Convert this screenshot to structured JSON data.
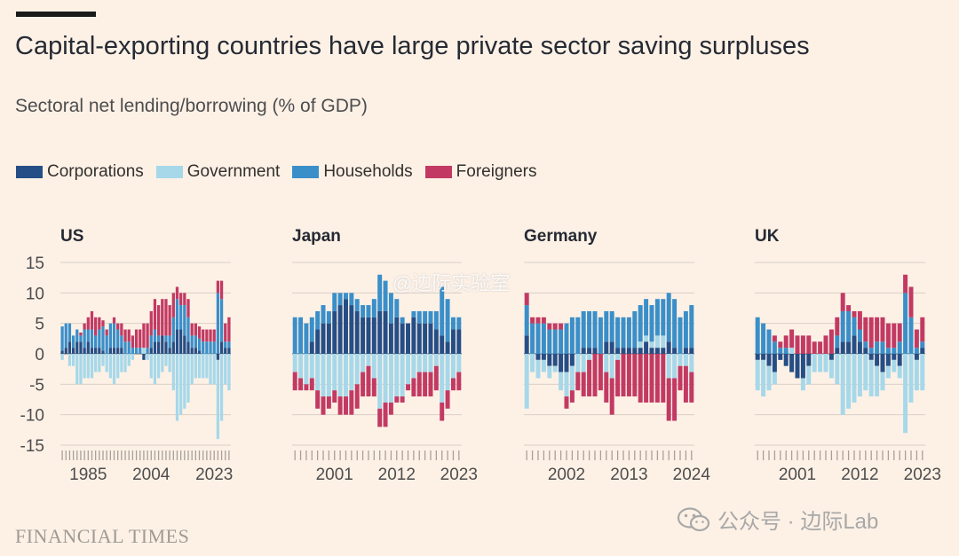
{
  "header": {
    "title": "Capital-exporting countries have large private sector saving surpluses",
    "subtitle": "Sectoral net lending/borrowing (% of GDP)"
  },
  "legend": [
    {
      "label": "Corporations",
      "color": "#264e86"
    },
    {
      "label": "Government",
      "color": "#a6d8ea"
    },
    {
      "label": "Households",
      "color": "#3a8fc9"
    },
    {
      "label": "Foreigners",
      "color": "#c23a63"
    }
  ],
  "footer": {
    "source": "FINANCIAL TIMES",
    "watermark_top": "@边际实验室",
    "watermark_bottom": "公众号 · 边际Lab"
  },
  "chart_data": [
    {
      "type": "bar",
      "stacked": "diverging",
      "title": "US",
      "ylim": [
        -15,
        15
      ],
      "yticks": [
        15,
        10,
        5,
        0,
        -5,
        -10,
        -15
      ],
      "xtick_labels": [
        "1985",
        "2004",
        "2023"
      ],
      "xticks_at": [
        7,
        24,
        41
      ],
      "categories": [
        "1978",
        "1979",
        "1980",
        "1981",
        "1982",
        "1983",
        "1984",
        "1985",
        "1986",
        "1987",
        "1988",
        "1989",
        "1990",
        "1991",
        "1992",
        "1993",
        "1994",
        "1995",
        "1996",
        "1997",
        "1998",
        "1999",
        "2000",
        "2001",
        "2002",
        "2003",
        "2004",
        "2005",
        "2006",
        "2007",
        "2008",
        "2009",
        "2010",
        "2011",
        "2012",
        "2013",
        "2014",
        "2015",
        "2016",
        "2017",
        "2018",
        "2019",
        "2020",
        "2021",
        "2022",
        "2023"
      ],
      "series": [
        {
          "name": "Corporations",
          "values": [
            0.5,
            1,
            2,
            1,
            2,
            2,
            1,
            2,
            1,
            1,
            1,
            0.5,
            0,
            1,
            1,
            1,
            1,
            0,
            0,
            0,
            0,
            0,
            -1,
            0,
            1,
            2,
            2,
            3,
            2,
            1,
            2,
            4,
            4,
            3,
            2,
            1,
            1,
            0.5,
            0,
            0,
            0,
            0,
            -1,
            2,
            1,
            1
          ]
        },
        {
          "name": "Government",
          "values": [
            -1,
            0,
            -2,
            -2,
            -5,
            -5,
            -4,
            -4,
            -4,
            -3,
            -3,
            -2,
            -3,
            -4,
            -5,
            -4,
            -3,
            -3,
            -2,
            -1,
            0,
            0,
            1,
            -1,
            -4,
            -5,
            -4,
            -3,
            -2,
            -3,
            -6,
            -11,
            -10,
            -9,
            -8,
            -5,
            -4,
            -4,
            -4,
            -4,
            -5,
            -5,
            -13,
            -11,
            -5,
            -6
          ]
        },
        {
          "name": "Households",
          "values": [
            4,
            4,
            3,
            2,
            2,
            1,
            3,
            2,
            3,
            2,
            3,
            4,
            3,
            4,
            4,
            3,
            2,
            2,
            2,
            1,
            1,
            1,
            0,
            1,
            2,
            2,
            1,
            0,
            1,
            2,
            4,
            5,
            4,
            5,
            4,
            2,
            2,
            2,
            2,
            2,
            2,
            2,
            10,
            7,
            1,
            1
          ]
        },
        {
          "name": "Foreigners",
          "values": [
            0,
            0,
            0,
            0,
            0,
            0.5,
            1,
            2,
            3,
            3,
            2,
            1,
            1,
            0,
            1,
            1,
            2,
            2,
            2,
            2,
            3,
            3,
            4,
            4,
            4,
            5,
            5,
            6,
            6,
            5,
            4,
            2,
            2,
            2,
            3,
            2,
            2,
            2,
            2,
            2,
            2,
            2,
            2,
            3,
            3,
            4
          ]
        }
      ]
    },
    {
      "type": "bar",
      "stacked": "diverging",
      "title": "Japan",
      "ylim": [
        -15,
        15
      ],
      "yticks": [
        15,
        10,
        5,
        0,
        -5,
        -10,
        -15
      ],
      "xtick_labels": [
        "2001",
        "2012",
        "2023"
      ],
      "xticks_at": [
        7,
        18,
        29
      ],
      "categories": [
        "1994",
        "1995",
        "1996",
        "1997",
        "1998",
        "1999",
        "2000",
        "2001",
        "2002",
        "2003",
        "2004",
        "2005",
        "2006",
        "2007",
        "2008",
        "2009",
        "2010",
        "2011",
        "2012",
        "2013",
        "2014",
        "2015",
        "2016",
        "2017",
        "2018",
        "2019",
        "2020",
        "2021",
        "2022",
        "2023"
      ],
      "series": [
        {
          "name": "Corporations",
          "values": [
            0,
            0,
            0,
            2,
            4,
            5,
            5,
            7,
            8,
            9,
            8,
            7,
            6,
            6,
            6,
            7,
            7,
            5,
            6,
            5,
            5,
            6,
            5,
            5,
            5,
            4,
            3,
            2,
            4,
            4
          ]
        },
        {
          "name": "Government",
          "values": [
            -3,
            -4,
            -5,
            -4,
            -6,
            -7,
            -7,
            -6,
            -7,
            -7,
            -6,
            -5,
            -3,
            -2,
            -4,
            -9,
            -8,
            -8,
            -7,
            -7,
            -5,
            -4,
            -3,
            -3,
            -3,
            -2,
            -8,
            -6,
            -4,
            -3
          ]
        },
        {
          "name": "Households",
          "values": [
            6,
            6,
            5,
            4,
            3,
            3,
            2,
            3,
            2,
            1,
            2,
            2,
            2,
            2,
            3,
            6,
            5,
            5,
            3,
            1,
            0,
            1,
            2,
            2,
            2,
            3,
            8,
            7,
            2,
            2
          ]
        },
        {
          "name": "Foreigners",
          "values": [
            -3,
            -2,
            -1,
            -2,
            -3,
            -3,
            -2,
            -2,
            -3,
            -3,
            -4,
            -4,
            -4,
            -5,
            -3,
            -3,
            -4,
            -2,
            -1,
            -1,
            -1,
            -3,
            -4,
            -4,
            -4,
            -4,
            -3,
            -3,
            -2,
            -3
          ]
        }
      ]
    },
    {
      "type": "bar",
      "stacked": "diverging",
      "title": "Germany",
      "ylim": [
        -15,
        15
      ],
      "yticks": [
        15,
        10,
        5,
        0,
        -5,
        -10,
        -15
      ],
      "xtick_labels": [
        "2002",
        "2013",
        "2024"
      ],
      "xticks_at": [
        7,
        18,
        29
      ],
      "categories": [
        "1995",
        "1996",
        "1997",
        "1998",
        "1999",
        "2000",
        "2001",
        "2002",
        "2003",
        "2004",
        "2005",
        "2006",
        "2007",
        "2008",
        "2009",
        "2010",
        "2011",
        "2012",
        "2013",
        "2014",
        "2015",
        "2016",
        "2017",
        "2018",
        "2019",
        "2020",
        "2021",
        "2022",
        "2023",
        "2024"
      ],
      "series": [
        {
          "name": "Corporations",
          "values": [
            3,
            0,
            -1,
            -1,
            -2,
            -2,
            -3,
            -3,
            -2,
            0,
            1,
            1,
            1,
            0,
            2,
            2,
            1,
            1,
            1,
            1,
            1,
            2,
            1,
            1,
            1,
            2,
            1,
            0,
            1,
            1
          ]
        },
        {
          "name": "Government",
          "values": [
            -9,
            -3,
            -3,
            -2,
            -2,
            -1,
            -3,
            -4,
            -4,
            -3,
            -3,
            -1,
            0,
            0,
            -3,
            -4,
            -1,
            0,
            0,
            0,
            1,
            1,
            1,
            2,
            2,
            -4,
            -4,
            -2,
            -2,
            -3
          ]
        },
        {
          "name": "Households",
          "values": [
            5,
            5,
            5,
            5,
            4,
            4,
            4,
            5,
            6,
            6,
            6,
            6,
            6,
            6,
            5,
            5,
            5,
            5,
            5,
            6,
            6,
            6,
            6,
            6,
            6,
            8,
            8,
            6,
            6,
            7
          ]
        },
        {
          "name": "Foreigners",
          "values": [
            2,
            1,
            1,
            1,
            1,
            1,
            1,
            -2,
            -2,
            -3,
            -4,
            -6,
            -7,
            -6,
            -5,
            -6,
            -6,
            -7,
            -7,
            -7,
            -8,
            -8,
            -8,
            -8,
            -8,
            -7,
            -7,
            -4,
            -6,
            -5
          ]
        }
      ]
    },
    {
      "type": "bar",
      "stacked": "diverging",
      "title": "UK",
      "ylim": [
        -15,
        15
      ],
      "yticks": [
        15,
        10,
        5,
        0,
        -5,
        -10,
        -15
      ],
      "xtick_labels": [
        "2001",
        "2012",
        "2023"
      ],
      "xticks_at": [
        7,
        18,
        29
      ],
      "categories": [
        "1994",
        "1995",
        "1996",
        "1997",
        "1998",
        "1999",
        "2000",
        "2001",
        "2002",
        "2003",
        "2004",
        "2005",
        "2006",
        "2007",
        "2008",
        "2009",
        "2010",
        "2011",
        "2012",
        "2013",
        "2014",
        "2015",
        "2016",
        "2017",
        "2018",
        "2019",
        "2020",
        "2021",
        "2022",
        "2023"
      ],
      "series": [
        {
          "name": "Corporations",
          "values": [
            -1,
            -1,
            -2,
            -3,
            -1,
            -2,
            -3,
            -4,
            -4,
            -2,
            0,
            0,
            0,
            -1,
            1,
            2,
            2,
            3,
            2,
            1,
            -1,
            -2,
            -3,
            -2,
            -1,
            -2,
            0,
            0,
            -1,
            1
          ]
        },
        {
          "name": "Government",
          "values": [
            -5,
            -6,
            -4,
            -2,
            0,
            0,
            1,
            0,
            -2,
            -3,
            -3,
            -3,
            -3,
            -3,
            -5,
            -10,
            -9,
            -8,
            -7,
            -6,
            -6,
            -5,
            -3,
            -2,
            -2,
            -2,
            -13,
            -8,
            -5,
            -6
          ]
        },
        {
          "name": "Households",
          "values": [
            6,
            5,
            4,
            2,
            1,
            1,
            0,
            0,
            0,
            0,
            0,
            0,
            0,
            0,
            2,
            5,
            5,
            3,
            2,
            1,
            1,
            2,
            2,
            1,
            1,
            2,
            10,
            6,
            1,
            1
          ]
        },
        {
          "name": "Foreigners",
          "values": [
            0,
            0,
            0,
            1,
            1,
            2,
            3,
            3,
            3,
            3,
            2,
            2,
            3,
            4,
            3,
            3,
            1,
            1,
            3,
            4,
            5,
            4,
            4,
            4,
            4,
            3,
            3,
            5,
            3,
            4
          ]
        }
      ]
    }
  ]
}
